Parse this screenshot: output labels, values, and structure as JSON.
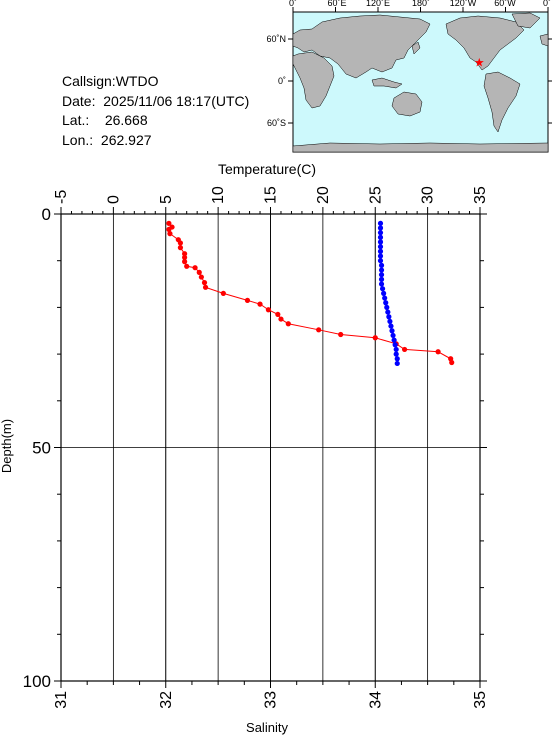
{
  "info": {
    "callsign": "Callsign:WTDO",
    "date_label": "Date:",
    "date_value": "2025/11/06 18:17(UTC)",
    "lat_label": "Lat.:",
    "lat_value": "26.668",
    "lon_label": "Lon.:",
    "lon_value": "262.927"
  },
  "map": {
    "lon_labels": [
      "0˚",
      "60˚E",
      "120˚E",
      "180˚",
      "120˚W",
      "60˚W",
      "0˚"
    ],
    "lat_labels": [
      "60˚N",
      "0˚",
      "60˚S"
    ],
    "ocean_color": "#cdf9fc",
    "land_color": "#b5b5b5",
    "station_marker_color": "#ff0000",
    "station_lon": 262.927,
    "station_lat": 26.668
  },
  "chart_data": {
    "type": "scatter",
    "title": "",
    "x_top_label": "Temperature(C)",
    "x_bottom_label": "Salinity",
    "y_label": "Depth(m)",
    "temperature_range": [
      -5,
      35
    ],
    "temperature_ticks": [
      "-5",
      "0",
      "5",
      "10",
      "15",
      "20",
      "25",
      "30",
      "35"
    ],
    "salinity_range": [
      31,
      35
    ],
    "salinity_ticks": [
      "31",
      "32",
      "33",
      "34",
      "35"
    ],
    "depth_range": [
      0,
      100
    ],
    "depth_ticks": [
      "0",
      "50",
      "100"
    ],
    "grid": true,
    "series": [
      {
        "axis": "salinity",
        "color": "#ff0000",
        "points": [
          [
            32.03,
            2.0
          ],
          [
            32.06,
            2.8
          ],
          [
            32.03,
            3.3
          ],
          [
            32.04,
            4.2
          ],
          [
            32.12,
            5.5
          ],
          [
            32.14,
            6.2
          ],
          [
            32.14,
            7.2
          ],
          [
            32.18,
            8.5
          ],
          [
            32.18,
            9.3
          ],
          [
            32.18,
            10.2
          ],
          [
            32.2,
            11.2
          ],
          [
            32.28,
            11.5
          ],
          [
            32.32,
            12.5
          ],
          [
            32.34,
            13.5
          ],
          [
            32.37,
            14.7
          ],
          [
            32.38,
            15.7
          ],
          [
            32.55,
            17.0
          ],
          [
            32.78,
            18.5
          ],
          [
            32.9,
            19.3
          ],
          [
            32.98,
            20.5
          ],
          [
            33.07,
            21.5
          ],
          [
            33.1,
            22.5
          ],
          [
            33.17,
            23.5
          ],
          [
            33.46,
            24.8
          ],
          [
            33.67,
            25.8
          ],
          [
            34.0,
            26.5
          ],
          [
            34.2,
            27.8
          ],
          [
            34.28,
            29.0
          ],
          [
            34.6,
            29.5
          ],
          [
            34.72,
            31.0
          ],
          [
            34.73,
            31.8
          ]
        ]
      },
      {
        "axis": "temperature",
        "color": "#0000ff",
        "points": [
          [
            25.5,
            2
          ],
          [
            25.5,
            3
          ],
          [
            25.5,
            4
          ],
          [
            25.5,
            5
          ],
          [
            25.5,
            6
          ],
          [
            25.5,
            7
          ],
          [
            25.5,
            8
          ],
          [
            25.5,
            9
          ],
          [
            25.5,
            10
          ],
          [
            25.6,
            11
          ],
          [
            25.6,
            12
          ],
          [
            25.6,
            13
          ],
          [
            25.6,
            14
          ],
          [
            25.6,
            15
          ],
          [
            25.7,
            16
          ],
          [
            25.8,
            17
          ],
          [
            25.9,
            18
          ],
          [
            26.0,
            19
          ],
          [
            26.1,
            20
          ],
          [
            26.2,
            21
          ],
          [
            26.3,
            22
          ],
          [
            26.4,
            23
          ],
          [
            26.5,
            24
          ],
          [
            26.6,
            25
          ],
          [
            26.7,
            26
          ],
          [
            26.8,
            27
          ],
          [
            26.9,
            28
          ],
          [
            27.0,
            29
          ],
          [
            27.0,
            30
          ],
          [
            27.1,
            31
          ],
          [
            27.1,
            32
          ]
        ]
      }
    ]
  }
}
